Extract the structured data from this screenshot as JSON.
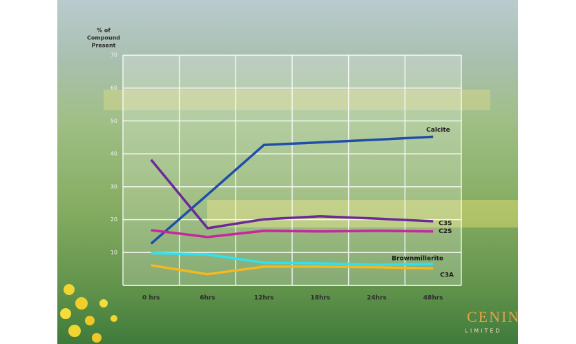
{
  "chart_data": {
    "type": "line",
    "y_label": [
      "% of",
      "Compound",
      "Present"
    ],
    "categories": [
      "0 hrs",
      "6hrs",
      "12hrs",
      "18hrs",
      "24hrs",
      "48hrs"
    ],
    "series": [
      {
        "name": "Calcite",
        "color": "#1f4ea8",
        "values": [
          12.7,
          27.6,
          42.7,
          43.5,
          44.3,
          45.2
        ]
      },
      {
        "name": "C3S",
        "color": "#6b2a9a",
        "values": [
          38.2,
          17.4,
          20.1,
          21,
          20.3,
          19.5
        ]
      },
      {
        "name": "C2S",
        "color": "#c8259e",
        "values": [
          16.8,
          14.7,
          16.6,
          16.4,
          16.6,
          16.4
        ]
      },
      {
        "name": "Brownmillerite",
        "color": "#2fe2f2",
        "values": [
          9.8,
          9.4,
          6.9,
          6.7,
          6.3,
          6.5
        ]
      },
      {
        "name": "C3A",
        "color": "#f5b820",
        "values": [
          6.1,
          3.4,
          5.7,
          5.7,
          5.5,
          5.2
        ]
      }
    ],
    "ylim": [
      0,
      70
    ],
    "yticks": [
      10,
      20,
      30,
      40,
      50,
      60,
      70
    ],
    "grid": true
  },
  "logo": {
    "name": "CENIN",
    "sub": "LIMITED"
  }
}
